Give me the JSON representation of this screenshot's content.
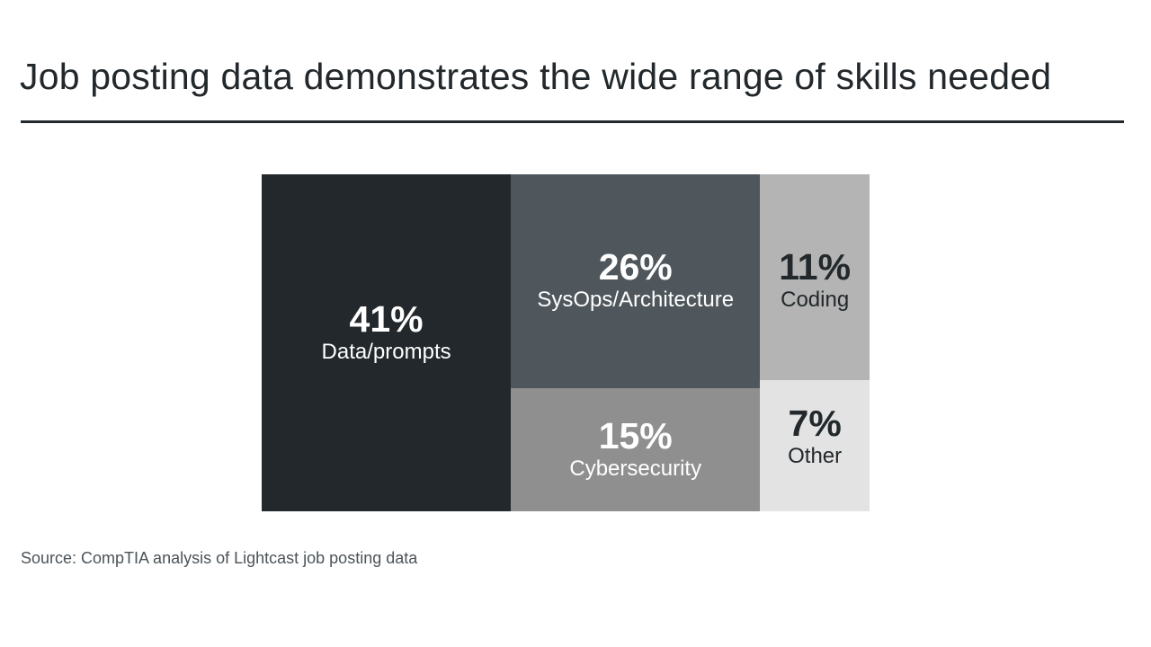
{
  "title": "Job posting data demonstrates the wide range of skills needed",
  "source": "Source: CompTIA analysis of Lightcast job posting data",
  "chart_data": {
    "type": "treemap",
    "title": "Job posting data demonstrates the wide range of skills needed",
    "unit": "%",
    "items": [
      {
        "label": "Data/prompts",
        "value": 41,
        "display": "41%",
        "color": "#22282b",
        "text_color": "#ffffff"
      },
      {
        "label": "SysOps/Architecture",
        "value": 26,
        "display": "26%",
        "color": "#4f575c",
        "text_color": "#ffffff"
      },
      {
        "label": "Coding",
        "value": 11,
        "display": "11%",
        "color": "#b4b4b4",
        "text_color": "#22282b"
      },
      {
        "label": "Cybersecurity",
        "value": 15,
        "display": "15%",
        "color": "#8f8f8f",
        "text_color": "#ffffff"
      },
      {
        "label": "Other",
        "value": 7,
        "display": "7%",
        "color": "#e3e3e3",
        "text_color": "#22282b"
      }
    ]
  }
}
